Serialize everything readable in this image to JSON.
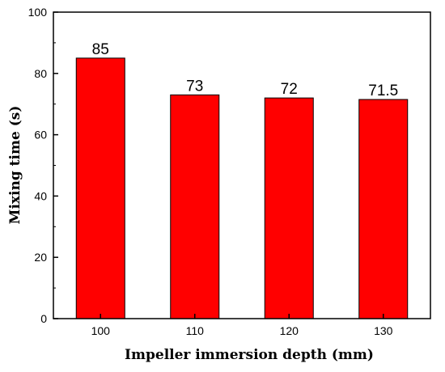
{
  "chart_data": {
    "type": "bar",
    "title": "",
    "xlabel": "Impeller immersion depth (mm)",
    "ylabel": "Mixing time (s)",
    "categories": [
      "100",
      "110",
      "120",
      "130"
    ],
    "values": [
      85,
      73,
      72,
      71.5
    ],
    "data_labels": [
      "85",
      "73",
      "72",
      "71.5"
    ],
    "ylim": [
      0,
      100
    ],
    "yticks": [
      0,
      20,
      40,
      60,
      80,
      100
    ],
    "ytick_labels": [
      "0",
      "20",
      "40",
      "60",
      "80",
      "100"
    ],
    "grid": false,
    "legend": "none",
    "bar_color": "#ff0000",
    "bar_edge_color": "#000000"
  }
}
